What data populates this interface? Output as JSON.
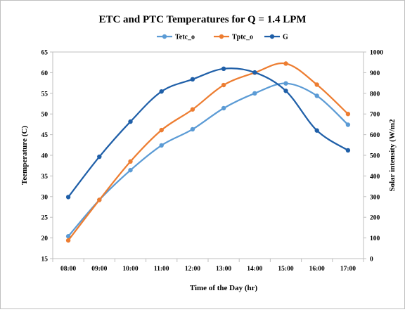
{
  "chart_data": {
    "type": "line",
    "title": "ETC and PTC Temperatures for Q = 1.4 LPM",
    "xlabel": "Time  of the Day (hr)",
    "ylabel": "Teemperature (C)",
    "y2label": "Solar intensity  (W/m2",
    "categories": [
      "08:00",
      "09:00",
      "10:00",
      "11:00",
      "12:00",
      "13:00",
      "14:00",
      "15:00",
      "16:00",
      "17:00"
    ],
    "ylim": [
      15,
      65
    ],
    "yticks": [
      15,
      20,
      25,
      30,
      35,
      40,
      45,
      50,
      55,
      60,
      65
    ],
    "y2lim": [
      0,
      1000
    ],
    "y2ticks": [
      0,
      100,
      200,
      300,
      400,
      500,
      600,
      700,
      800,
      900,
      1000
    ],
    "grid": false,
    "legend_position": "top-center",
    "series": [
      {
        "name": "Tetc_o",
        "axis": "left",
        "color": "#5b9bd5",
        "values": [
          20.4,
          29.2,
          36.4,
          42.4,
          46.3,
          51.4,
          55.0,
          57.4,
          54.4,
          47.4
        ]
      },
      {
        "name": "Tptc_o",
        "axis": "left",
        "color": "#ed7d31",
        "values": [
          19.4,
          29.2,
          38.5,
          46.1,
          51.1,
          57.0,
          60.0,
          62.2,
          57.1,
          50.0
        ]
      },
      {
        "name": "G",
        "axis": "right",
        "color": "#1f5fa8",
        "values": [
          298,
          493,
          663,
          809,
          868,
          919,
          901,
          812,
          620,
          524
        ]
      }
    ]
  }
}
